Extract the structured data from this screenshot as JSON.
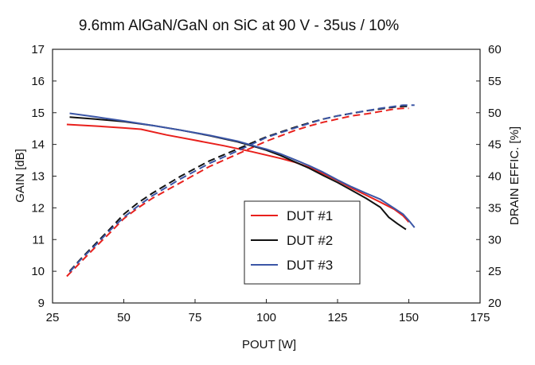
{
  "chart_data": {
    "type": "line",
    "title": "9.6mm AlGaN/GaN on SiC at 90 V  -  35us / 10%",
    "xlabel": "POUT [W]",
    "ylabel": "GAIN [dB]",
    "y2label": "DRAIN EFFIC. [%]",
    "xlim": [
      25,
      175
    ],
    "ylim": [
      9,
      17
    ],
    "y2lim": [
      20,
      60
    ],
    "xticks": [
      "25",
      "50",
      "75",
      "100",
      "125",
      "150",
      "175"
    ],
    "yticks": [
      "9",
      "10",
      "11",
      "12",
      "13",
      "14",
      "15",
      "16",
      "17"
    ],
    "y2ticks": [
      "20",
      "25",
      "30",
      "35",
      "40",
      "45",
      "50",
      "55",
      "60"
    ],
    "grid": false,
    "legend_position": "lower-center-right",
    "notes": "Solid lines = gain (left axis); dashed lines = drain efficiency (right axis).",
    "series": [
      {
        "name": "DUT #1",
        "color": "#e8201c",
        "gain": {
          "x": [
            30,
            40,
            50,
            56,
            65,
            75,
            85,
            95,
            105,
            110,
            115,
            120,
            125,
            130,
            135,
            140,
            145,
            148,
            150
          ],
          "y": [
            14.63,
            14.58,
            14.52,
            14.48,
            14.3,
            14.13,
            13.96,
            13.77,
            13.56,
            13.44,
            13.28,
            13.08,
            12.86,
            12.62,
            12.4,
            12.18,
            11.95,
            11.75,
            11.55
          ]
        },
        "efficiency": {
          "x": [
            30,
            35,
            40,
            45,
            50,
            55,
            60,
            70,
            80,
            90,
            100,
            110,
            115,
            120,
            125,
            130,
            135,
            140,
            145,
            148,
            150
          ],
          "y": [
            24.2,
            26.5,
            28.8,
            31,
            33.3,
            35,
            36.5,
            39,
            41.5,
            43.5,
            45.5,
            47.2,
            47.9,
            48.5,
            49,
            49.5,
            49.8,
            50.2,
            50.6,
            50.7,
            50.7
          ]
        }
      },
      {
        "name": "DUT #2",
        "color": "#111111",
        "gain": {
          "x": [
            31,
            40,
            50,
            60,
            70,
            80,
            90,
            97,
            100,
            105,
            110,
            115,
            120,
            125,
            130,
            135,
            140,
            143,
            146,
            149
          ],
          "y": [
            14.86,
            14.8,
            14.72,
            14.6,
            14.45,
            14.28,
            14.08,
            13.9,
            13.82,
            13.65,
            13.45,
            13.25,
            13.02,
            12.8,
            12.55,
            12.3,
            12.02,
            11.7,
            11.5,
            11.32
          ]
        },
        "efficiency": {
          "x": [
            31,
            35,
            40,
            45,
            50,
            55,
            60,
            70,
            80,
            90,
            100,
            110,
            115,
            120,
            125,
            130,
            135,
            140,
            145,
            148,
            150
          ],
          "y": [
            25,
            27,
            29.3,
            31.6,
            34,
            35.8,
            37.3,
            40,
            42.4,
            44.3,
            46.2,
            47.7,
            48.4,
            49,
            49.5,
            49.9,
            50.3,
            50.6,
            50.9,
            51,
            51
          ]
        }
      },
      {
        "name": "DUT #3",
        "color": "#3b56a6",
        "gain": {
          "x": [
            31,
            40,
            50,
            60,
            70,
            80,
            90,
            97,
            100,
            105,
            110,
            115,
            120,
            125,
            130,
            135,
            140,
            145,
            148,
            150,
            152
          ],
          "y": [
            14.98,
            14.87,
            14.74,
            14.6,
            14.45,
            14.29,
            14.1,
            13.92,
            13.85,
            13.7,
            13.52,
            13.33,
            13.12,
            12.88,
            12.66,
            12.46,
            12.27,
            11.98,
            11.8,
            11.6,
            11.38
          ]
        },
        "efficiency": {
          "x": [
            31,
            35,
            40,
            45,
            50,
            55,
            60,
            70,
            80,
            90,
            100,
            110,
            115,
            120,
            125,
            130,
            135,
            140,
            145,
            148,
            150,
            152
          ],
          "y": [
            24.9,
            26.9,
            29.1,
            31.4,
            33.5,
            35.3,
            36.9,
            39.6,
            42,
            44,
            46.1,
            47.6,
            48.3,
            49,
            49.5,
            49.9,
            50.3,
            50.7,
            51,
            51.2,
            51.2,
            51.2
          ]
        }
      }
    ]
  }
}
